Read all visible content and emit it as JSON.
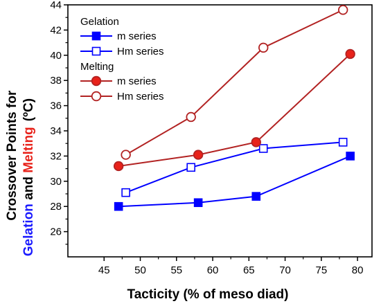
{
  "chart_data": {
    "type": "line",
    "xlabel": "Tacticity (% of meso diad)",
    "ylabel": {
      "prefix": "Crossover Points for",
      "part1": "Gelation",
      "and": " and ",
      "part2": "Melting",
      "unit": "(ºC)"
    },
    "xlim": [
      40,
      82
    ],
    "ylim": [
      24,
      44
    ],
    "xticks": [
      "45",
      "50",
      "55",
      "60",
      "65",
      "70",
      "75",
      "80"
    ],
    "yticks": [
      "26",
      "28",
      "30",
      "32",
      "34",
      "36",
      "38",
      "40",
      "42",
      "44"
    ],
    "legend": {
      "groups": [
        {
          "title": "Gelation",
          "entries": [
            "m series",
            "Hm series"
          ]
        },
        {
          "title": "Melting",
          "entries": [
            "m series",
            "Hm series"
          ]
        }
      ]
    },
    "series": [
      {
        "group": "Gelation",
        "name": "m series",
        "marker": "square",
        "filled": true,
        "color": "#0000ff",
        "x": [
          47,
          58,
          66,
          79
        ],
        "y": [
          28.0,
          28.3,
          28.8,
          32.0
        ]
      },
      {
        "group": "Gelation",
        "name": "Hm series",
        "marker": "square",
        "filled": false,
        "color": "#0000ff",
        "x": [
          48,
          57,
          67,
          78
        ],
        "y": [
          29.1,
          31.1,
          32.6,
          33.1
        ]
      },
      {
        "group": "Melting",
        "name": "m series",
        "marker": "circle",
        "filled": true,
        "color": "#b22222",
        "fill": "#e8221a",
        "x": [
          47,
          58,
          66,
          79
        ],
        "y": [
          31.2,
          32.1,
          33.1,
          40.1
        ]
      },
      {
        "group": "Melting",
        "name": "Hm series",
        "marker": "circle",
        "filled": false,
        "color": "#b22222",
        "fill": "#e8221a",
        "x": [
          48,
          57,
          67,
          78
        ],
        "y": [
          32.1,
          35.1,
          40.6,
          43.6
        ]
      }
    ],
    "colors": {
      "gelation": "#1a1aff",
      "melting": "#e8221a"
    }
  }
}
